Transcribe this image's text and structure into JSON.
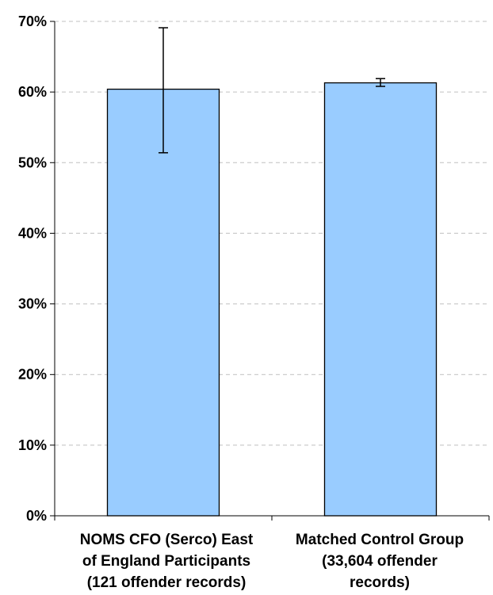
{
  "chart_data": {
    "type": "bar",
    "categories": [
      [
        "NOMS CFO (Serco) East",
        "of England Participants",
        "(121 offender records)"
      ],
      [
        "Matched Control Group",
        "(33,604 offender",
        "records)"
      ]
    ],
    "values": [
      60.4,
      61.3
    ],
    "error_low": [
      51.4,
      60.8
    ],
    "error_high": [
      69.1,
      61.9
    ],
    "ylim": [
      0,
      70
    ],
    "yticks": [
      0,
      10,
      20,
      30,
      40,
      50,
      60,
      70
    ],
    "ytick_labels": [
      "0%",
      "10%",
      "20%",
      "30%",
      "40%",
      "50%",
      "60%",
      "70%"
    ],
    "grid": true,
    "bar_color": "#99ccff",
    "bar_edge_color": "#000000",
    "grid_color": "#c0c0c0"
  }
}
